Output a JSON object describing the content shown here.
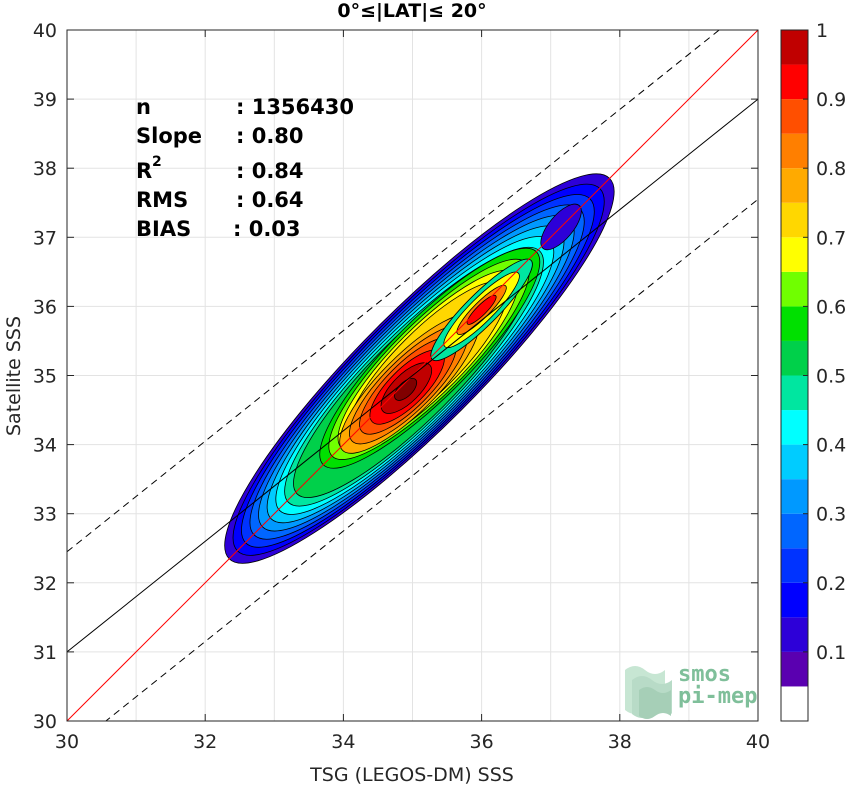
{
  "chart_data": {
    "type": "contour",
    "title": "0°≤|LAT|≤ 20°",
    "xlabel": "TSG (LEGOS-DM) SSS",
    "ylabel": "Satellite SSS",
    "xlim": [
      30,
      40
    ],
    "ylim": [
      30,
      40
    ],
    "xticks": [
      "30",
      "32",
      "34",
      "36",
      "38",
      "40"
    ],
    "yticks": [
      "30",
      "31",
      "32",
      "33",
      "34",
      "35",
      "36",
      "37",
      "38",
      "39",
      "40"
    ],
    "grid": true,
    "stats": [
      {
        "key": "n",
        "value": ": 1356430"
      },
      {
        "key": "Slope",
        "value": ": 0.80"
      },
      {
        "key": "R",
        "sup": "2",
        "value": ": 0.84"
      },
      {
        "key": "RMS",
        "value": ": 0.64"
      },
      {
        "key": "BIAS",
        "value": ": 0.03"
      }
    ],
    "lines": [
      {
        "name": "one-to-one",
        "color": "#ff0000",
        "style": "solid",
        "x": [
          30,
          40
        ],
        "y": [
          30,
          40
        ]
      },
      {
        "name": "regression",
        "color": "#000000",
        "style": "solid",
        "x": [
          30,
          40
        ],
        "y": [
          31.0,
          39.0
        ]
      },
      {
        "name": "upper-bound",
        "color": "#000000",
        "style": "dashed",
        "x": [
          30,
          40
        ],
        "y": [
          32.45,
          40.45
        ]
      },
      {
        "name": "lower-bound",
        "color": "#000000",
        "style": "dashed",
        "x": [
          30,
          40
        ],
        "y": [
          29.55,
          37.55
        ]
      }
    ],
    "density_peak": {
      "x": 34.9,
      "y": 34.8
    },
    "secondary_blob": {
      "x": 37.15,
      "y": 37.15
    },
    "colorbar": {
      "min": 0.05,
      "max": 1,
      "ticks": [
        "0.1",
        "0.2",
        "0.3",
        "0.4",
        "0.5",
        "0.6",
        "0.7",
        "0.8",
        "0.9",
        "1"
      ],
      "tick_values": [
        0.1,
        0.2,
        0.3,
        0.4,
        0.5,
        0.6,
        0.7,
        0.8,
        0.9,
        1.0
      ],
      "levels": [
        0.05,
        0.1,
        0.15,
        0.2,
        0.25,
        0.3,
        0.35,
        0.4,
        0.45,
        0.5,
        0.55,
        0.6,
        0.65,
        0.7,
        0.75,
        0.8,
        0.85,
        0.9,
        0.95
      ],
      "colors": [
        "#5a00b0",
        "#2d00d8",
        "#0000ff",
        "#0033ff",
        "#0066ff",
        "#0099ff",
        "#00ccff",
        "#00ffff",
        "#00e6a0",
        "#00d04a",
        "#00e000",
        "#70ff00",
        "#ffff00",
        "#ffd700",
        "#ffaa00",
        "#ff7f00",
        "#ff4f00",
        "#ff0000",
        "#c00000",
        "#800000"
      ]
    }
  },
  "logo": {
    "line1": "smos",
    "line2": "pi-mep"
  }
}
